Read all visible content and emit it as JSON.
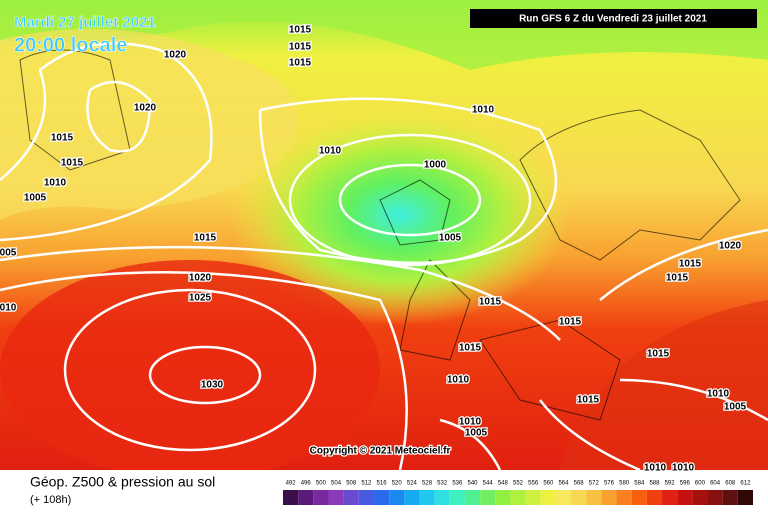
{
  "header": {
    "date": "Mardi 27 juillet 2021",
    "time": "20:00 locale",
    "run": "Run GFS 6 Z du Vendredi 23 juillet 2021",
    "copyright": "Copyright © 2021 Meteociel.fr"
  },
  "isobar_labels": [
    "1020",
    "1020",
    "1015",
    "1015",
    "1010",
    "1005",
    "1015",
    "1020",
    "1025",
    "1030",
    "1015",
    "1015",
    "1015",
    "1010",
    "1010",
    "1000",
    "1005",
    "1015",
    "1020",
    "1015",
    "1015",
    "1015",
    "1015",
    "1010",
    "1015",
    "1015",
    "1010",
    "1005",
    "1010",
    "1005",
    "1010",
    "1010",
    "005",
    "010"
  ],
  "legend": {
    "title": "Géop. Z500 & pression au sol",
    "subtitle": "(+ 108h)",
    "ticks": [
      492,
      496,
      500,
      504,
      508,
      512,
      516,
      520,
      524,
      528,
      532,
      536,
      540,
      544,
      548,
      552,
      556,
      560,
      564,
      568,
      572,
      576,
      580,
      584,
      588,
      592,
      596,
      600,
      604,
      608,
      612
    ],
    "colors": [
      "#3a0f4a",
      "#5a1a78",
      "#7a2a9e",
      "#8a3ab8",
      "#6a4ad0",
      "#4a5ae0",
      "#2a6aee",
      "#1a8af0",
      "#18aaf0",
      "#20c8f0",
      "#30e0e0",
      "#40f0c0",
      "#50f090",
      "#70f060",
      "#90f040",
      "#b0f040",
      "#d0f040",
      "#f0f040",
      "#f8e860",
      "#f8d850",
      "#f8c040",
      "#f8a030",
      "#f88020",
      "#f86010",
      "#f04010",
      "#e02010",
      "#c81010",
      "#a81010",
      "#881010",
      "#601010",
      "#300808"
    ]
  }
}
